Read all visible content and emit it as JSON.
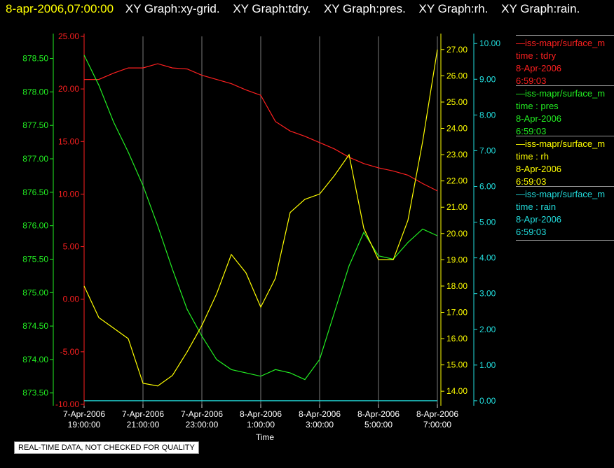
{
  "header": {
    "timestamp": "8-apr-2006,07:00:00",
    "graphs": [
      "XY Graph:xy-grid.",
      "XY Graph:tdry.",
      "XY Graph:pres.",
      "XY Graph:rh.",
      "XY Graph:rain."
    ]
  },
  "notice": "REAL-TIME DATA, NOT CHECKED FOR QUALITY",
  "legend": [
    {
      "name": "—iss-mapr/surface_m",
      "field": "time : tdry",
      "date": "8-Apr-2006",
      "time": "6:59:03",
      "color": "#ff2020"
    },
    {
      "name": "—iss-mapr/surface_m",
      "field": "time : pres",
      "date": "8-Apr-2006",
      "time": "6:59:03",
      "color": "#22ee22"
    },
    {
      "name": "—iss-mapr/surface_m",
      "field": "time : rh",
      "date": "8-Apr-2006",
      "time": "6:59:03",
      "color": "#ffff00"
    },
    {
      "name": "—iss-mapr/surface_m",
      "field": "time : rain",
      "date": "8-Apr-2006",
      "time": "6:59:03",
      "color": "#22dddd"
    }
  ],
  "chart_data": {
    "type": "line",
    "xlabel": "Time",
    "x_ticks": [
      [
        "7-Apr-2006",
        "19:00:00"
      ],
      [
        "7-Apr-2006",
        "21:00:00"
      ],
      [
        "7-Apr-2006",
        "23:00:00"
      ],
      [
        "8-Apr-2006",
        "1:00:00"
      ],
      [
        "8-Apr-2006",
        "3:00:00"
      ],
      [
        "8-Apr-2006",
        "5:00:00"
      ],
      [
        "8-Apr-2006",
        "7:00:00"
      ]
    ],
    "x_unit": "hours after 7-Apr-2006 19:00:00",
    "xlim": [
      0,
      12
    ],
    "grid": "vertical",
    "axes": {
      "tdry": {
        "ylim": [
          -10,
          25
        ],
        "ticks": [
          "25.00",
          "20.00",
          "15.00",
          "10.00",
          "5.00",
          "0.00",
          "-5.00",
          "-10.00"
        ],
        "color": "#ff2020",
        "side": "left-inner"
      },
      "pres": {
        "ylim": [
          873.33,
          878.83
        ],
        "ticks": [
          "878.50",
          "878.00",
          "877.50",
          "877.00",
          "876.50",
          "876.00",
          "875.50",
          "875.00",
          "874.50",
          "874.00",
          "873.50"
        ],
        "color": "#22ee22",
        "side": "left-outer"
      },
      "rh": {
        "ylim": [
          13.5,
          27.5
        ],
        "ticks": [
          "27.00",
          "26.00",
          "25.00",
          "24.00",
          "23.00",
          "22.00",
          "21.00",
          "20.00",
          "19.00",
          "18.00",
          "17.00",
          "16.00",
          "15.00",
          "14.00"
        ],
        "color": "#ffff00",
        "side": "right-inner"
      },
      "rain": {
        "ylim": [
          -0.1,
          10.2
        ],
        "ticks": [
          "10.00",
          "9.00",
          "8.00",
          "7.00",
          "6.00",
          "5.00",
          "4.00",
          "3.00",
          "2.00",
          "1.00",
          "0.00"
        ],
        "color": "#22dddd",
        "side": "right-outer"
      }
    },
    "series": [
      {
        "name": "tdry",
        "color": "#ff2020",
        "axis": "tdry",
        "x": [
          0,
          0.5,
          1,
          1.5,
          2,
          2.5,
          3,
          3.5,
          4,
          4.5,
          5,
          5.5,
          6,
          6.5,
          7,
          7.5,
          8,
          8.5,
          9,
          9.5,
          10,
          10.5,
          11,
          11.5,
          12
        ],
        "y": [
          20.9,
          20.9,
          21.5,
          22.0,
          22.0,
          22.4,
          22.0,
          21.9,
          21.3,
          20.9,
          20.5,
          19.9,
          19.4,
          16.9,
          16.0,
          15.5,
          14.9,
          14.3,
          13.5,
          12.9,
          12.5,
          12.2,
          11.8,
          11.0,
          10.3
        ]
      },
      {
        "name": "pres",
        "color": "#22ee22",
        "axis": "pres",
        "x": [
          0,
          0.5,
          1,
          1.5,
          2,
          2.5,
          3,
          3.5,
          4,
          4.5,
          5,
          5.5,
          6,
          6.5,
          7,
          7.5,
          8,
          8.5,
          9,
          9.5,
          10,
          10.5,
          11,
          11.5,
          12
        ],
        "y": [
          878.55,
          878.1,
          877.55,
          877.1,
          876.6,
          876.0,
          875.35,
          874.75,
          874.35,
          874.0,
          873.85,
          873.8,
          873.75,
          873.85,
          873.8,
          873.7,
          874.0,
          874.7,
          875.4,
          875.9,
          875.55,
          875.5,
          875.75,
          875.95,
          875.85
        ]
      },
      {
        "name": "rh",
        "color": "#ffff00",
        "axis": "rh",
        "x": [
          0,
          0.5,
          1,
          1.5,
          2,
          2.5,
          3,
          3.5,
          4,
          4.5,
          5,
          5.5,
          6,
          6.5,
          7,
          7.5,
          8,
          8.5,
          9,
          9.5,
          10,
          10.5,
          11,
          11.5,
          12
        ],
        "y": [
          18.0,
          16.8,
          16.4,
          16.0,
          14.3,
          14.2,
          14.6,
          15.5,
          16.5,
          17.7,
          19.2,
          18.5,
          17.2,
          18.3,
          20.8,
          21.3,
          21.5,
          22.2,
          23.0,
          20.2,
          19.0,
          19.0,
          20.5,
          23.5,
          27.0
        ]
      },
      {
        "name": "rain",
        "color": "#22dddd",
        "axis": "rain",
        "x": [
          0,
          12
        ],
        "y": [
          0.0,
          0.0
        ]
      }
    ]
  }
}
